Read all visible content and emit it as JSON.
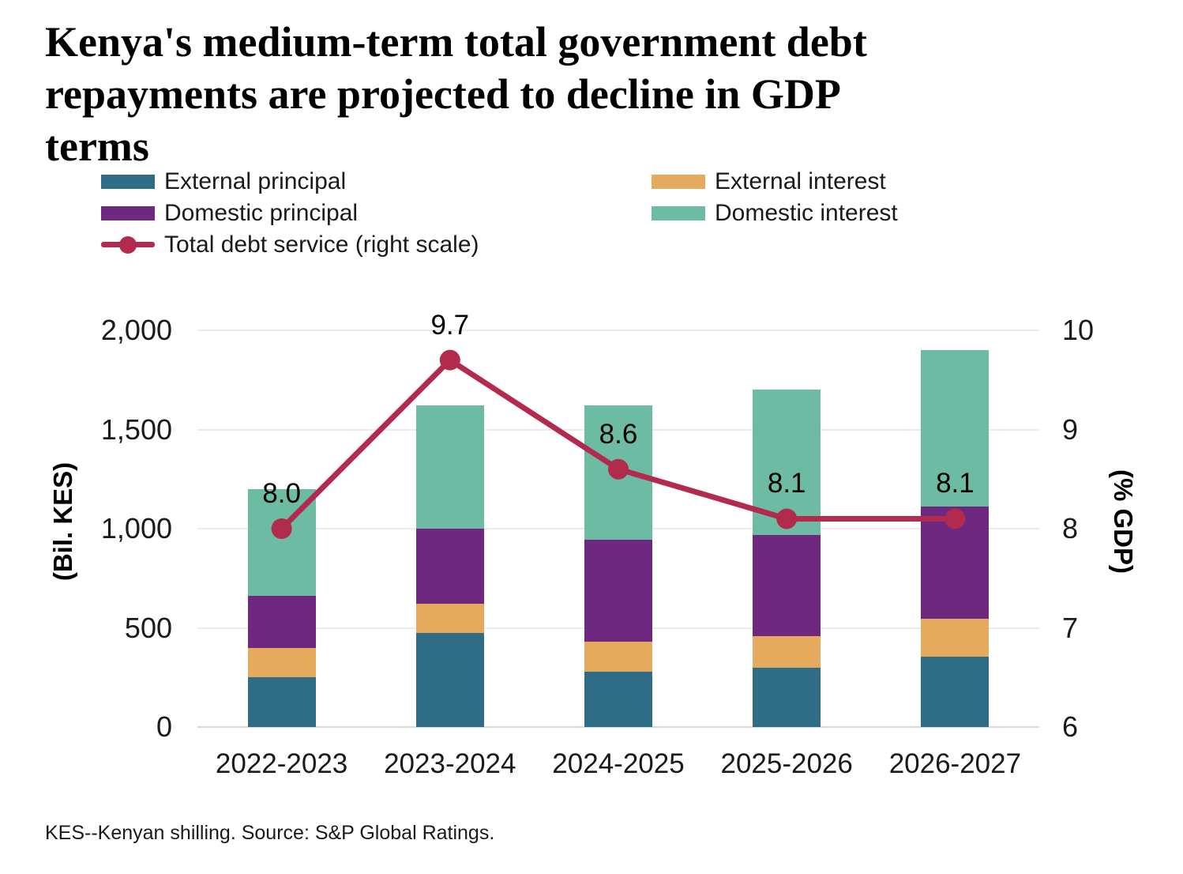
{
  "title": "Kenya's medium-term total government debt repayments are projected to decline in GDP terms",
  "footnote": "KES--Kenyan shilling. Source: S&P Global Ratings.",
  "legend": {
    "items": [
      {
        "label": "External principal",
        "color": "#2f6d86",
        "type": "swatch"
      },
      {
        "label": "External interest",
        "color": "#e5aa5d",
        "type": "swatch"
      },
      {
        "label": "Domestic principal",
        "color": "#6e2880",
        "type": "swatch"
      },
      {
        "label": "Domestic interest",
        "color": "#6dbba2",
        "type": "swatch"
      },
      {
        "label": "Total debt service (right scale)",
        "color": "#b22a4d",
        "type": "line"
      }
    ]
  },
  "chart_data": {
    "type": "bar",
    "subtype": "stacked-bars-with-line",
    "title": "Kenya's medium-term total government debt repayments are projected to decline in GDP terms",
    "categories": [
      "2022-2023",
      "2023-2024",
      "2024-2025",
      "2025-2026",
      "2026-2027"
    ],
    "series": [
      {
        "name": "External principal",
        "color": "#2f6d86",
        "values": [
          250,
          475,
          280,
          300,
          355
        ]
      },
      {
        "name": "External interest",
        "color": "#e5aa5d",
        "values": [
          150,
          145,
          150,
          160,
          190
        ]
      },
      {
        "name": "Domestic principal",
        "color": "#6e2880",
        "values": [
          260,
          380,
          515,
          510,
          565
        ]
      },
      {
        "name": "Domestic interest",
        "color": "#6dbba2",
        "values": [
          540,
          620,
          675,
          730,
          790
        ]
      }
    ],
    "bar_totals": [
      1200,
      1620,
      1620,
      1700,
      1900
    ],
    "line_series": {
      "name": "Total debt service (right scale)",
      "color": "#b22a4d",
      "axis": "right",
      "values": [
        8.0,
        9.7,
        8.6,
        8.1,
        8.1
      ],
      "labels": [
        "8.0",
        "9.7",
        "8.6",
        "8.1",
        "8.1"
      ]
    },
    "left_axis": {
      "label": "(Bil. KES)",
      "min": 0,
      "max": 2000,
      "tick_values": [
        0,
        500,
        1000,
        1500,
        2000
      ],
      "ticks": [
        "0",
        "500",
        "1,000",
        "1,500",
        "2,000"
      ]
    },
    "right_axis": {
      "label": "(% GDP)",
      "min": 6,
      "max": 10,
      "tick_values": [
        6,
        7,
        8,
        9,
        10
      ],
      "ticks": [
        "6",
        "7",
        "8",
        "9",
        "10"
      ]
    },
    "grid": "horizontal",
    "legend_position": "top-left"
  }
}
